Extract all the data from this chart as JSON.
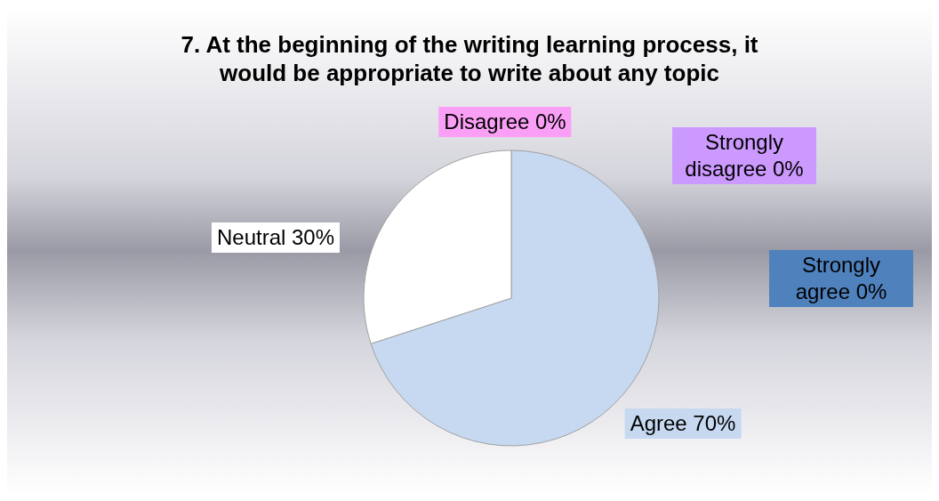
{
  "chart_data": {
    "type": "pie",
    "title": "7. At the beginning of the writing learning process, it would be appropriate to write about any topic",
    "categories": [
      "Strongly agree",
      "Agree",
      "Neutral",
      "Disagree",
      "Strongly disagree"
    ],
    "values": [
      0,
      70,
      30,
      0,
      0
    ],
    "colors": [
      "#4f81bd",
      "#c6d9f1",
      "#ffffff",
      "#f99ff5",
      "#cc99ff"
    ],
    "value_labels": [
      "0%",
      "70%",
      "30%",
      "0%",
      "0%"
    ],
    "legend": false
  }
}
